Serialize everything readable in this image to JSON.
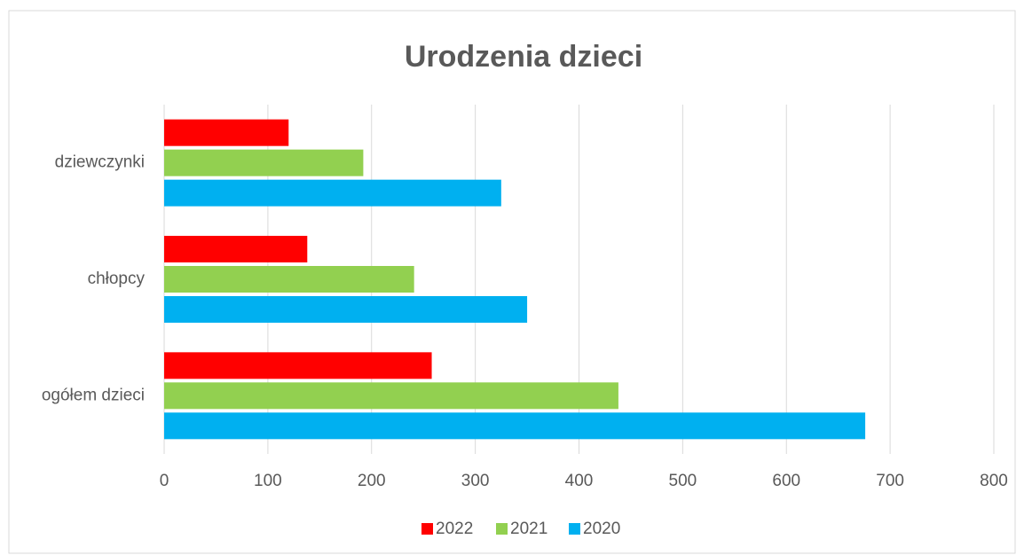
{
  "chart_data": {
    "type": "bar",
    "orientation": "horizontal",
    "title": "Urodzenia dzieci",
    "categories": [
      "ogółem dzieci",
      "chłopcy",
      "dziewczynki"
    ],
    "series": [
      {
        "name": "2022",
        "color": "#ff0000",
        "values": [
          258,
          138,
          120
        ]
      },
      {
        "name": "2021",
        "color": "#92d050",
        "values": [
          438,
          241,
          192
        ]
      },
      {
        "name": "2020",
        "color": "#00b0f0",
        "values": [
          676,
          350,
          325
        ]
      }
    ],
    "xlim": [
      0,
      800
    ],
    "xticks": [
      0,
      100,
      200,
      300,
      400,
      500,
      600,
      700,
      800
    ],
    "grid": true,
    "legend": "bottom"
  }
}
